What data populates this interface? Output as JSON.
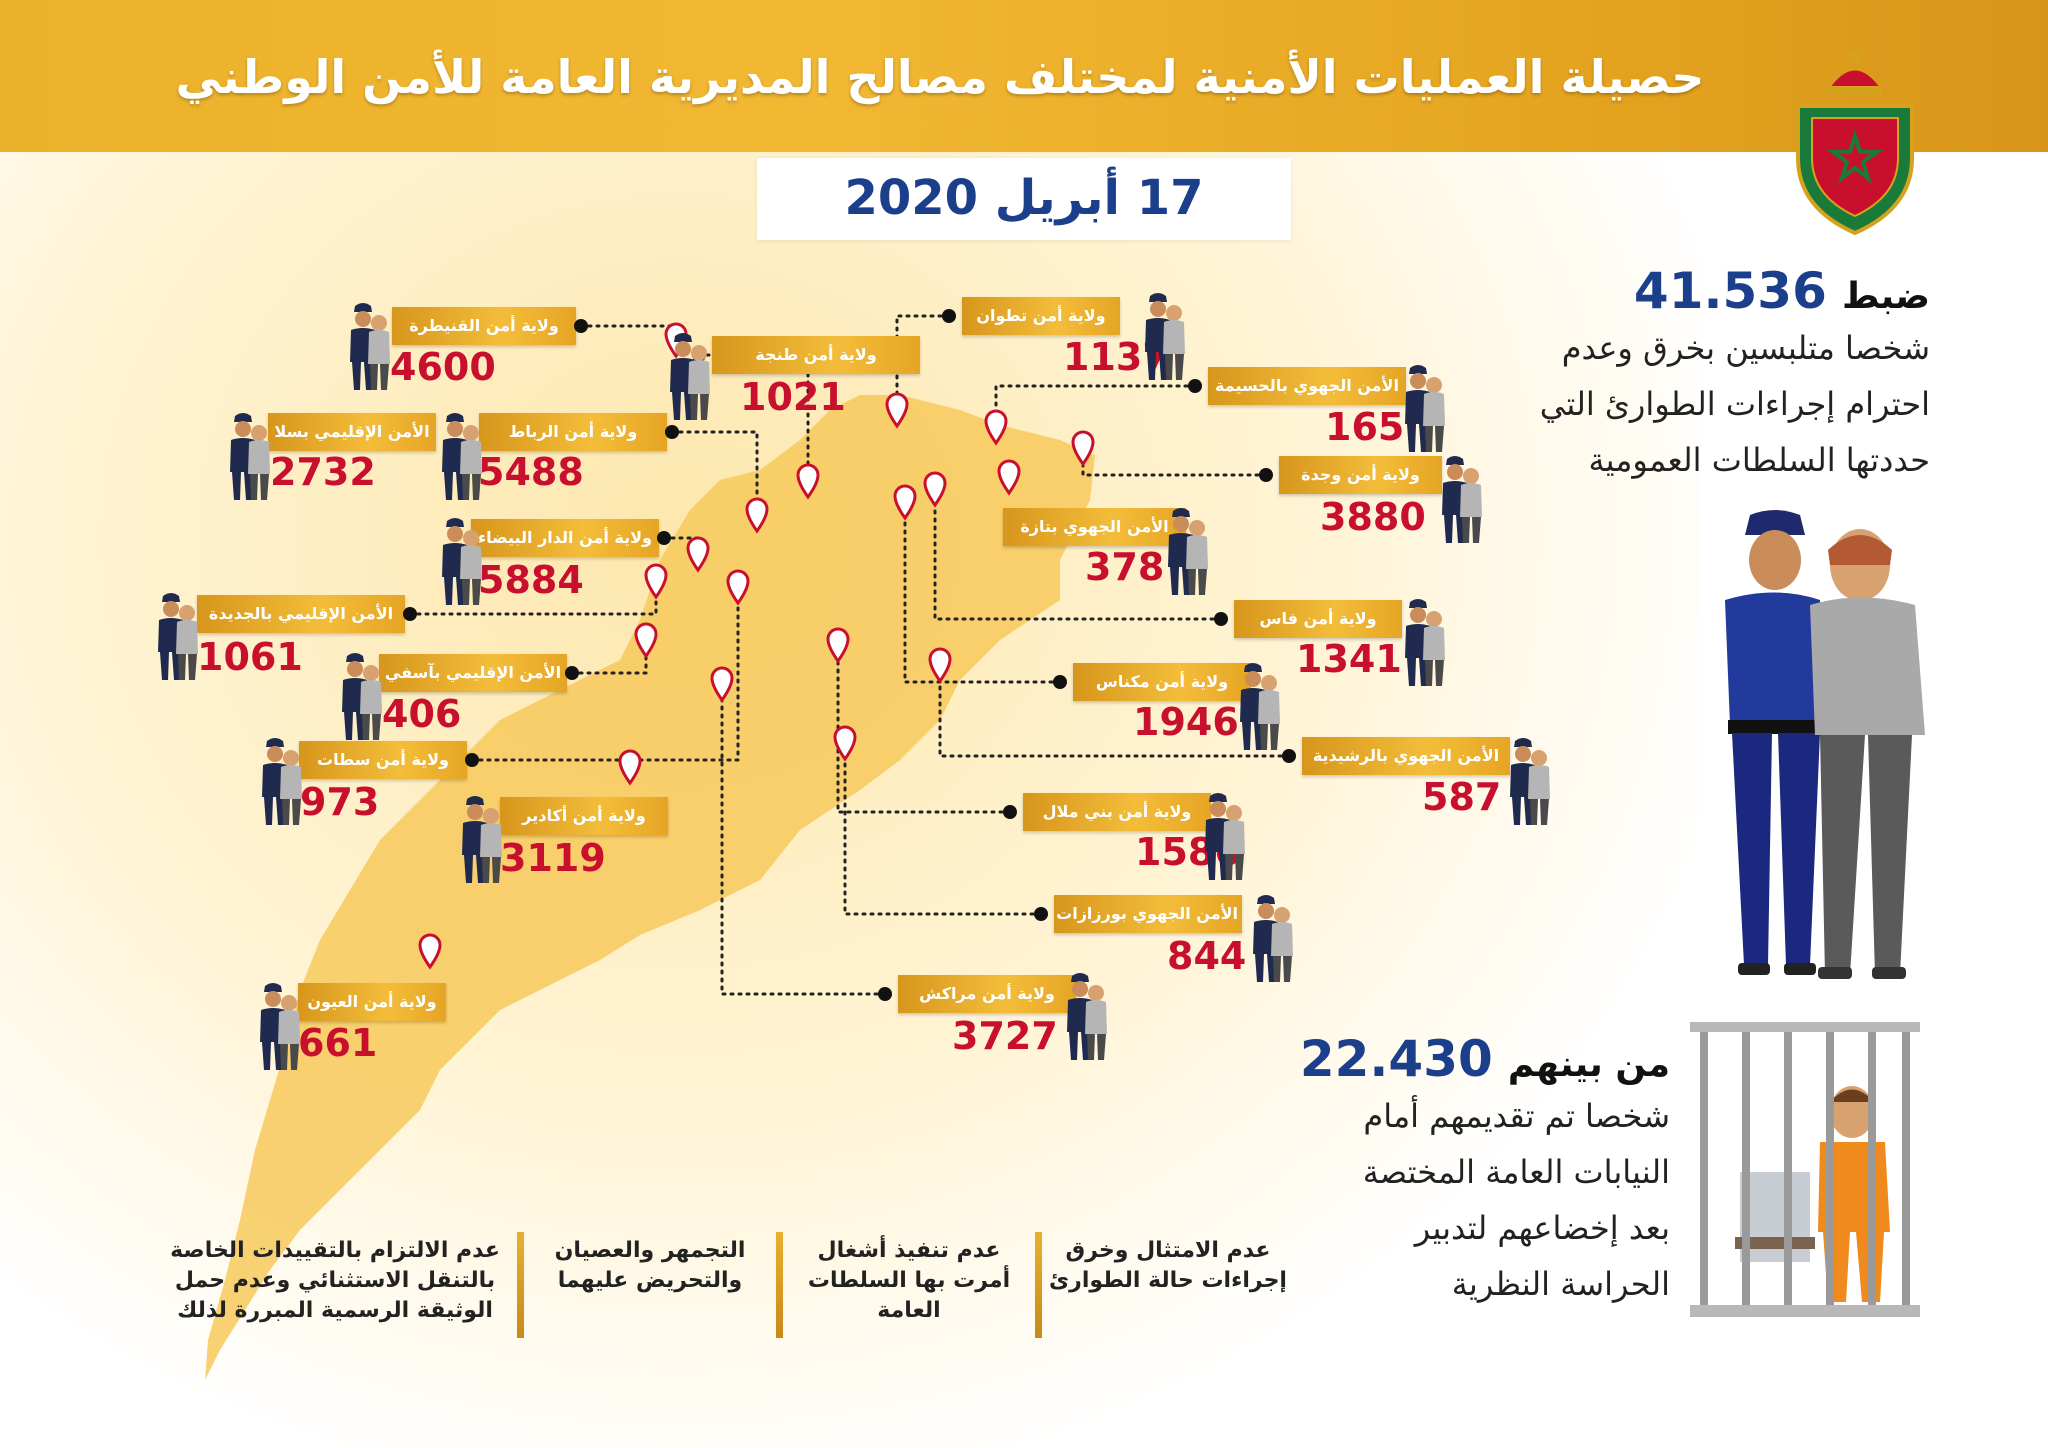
{
  "header": {
    "title": "حصيلة العمليات الأمنية لمختلف مصالح المديرية العامة للأمن الوطني"
  },
  "date": {
    "label": "17 أبريل 2020"
  },
  "colors": {
    "header": "#ecb12a",
    "map": "#f7c95c",
    "value": "#c8102e",
    "highlight": "#1c3f8c",
    "label": "#e6a524"
  },
  "regions": [
    {
      "name": "ولاية أمن القنيطرة",
      "value": "4600"
    },
    {
      "name": "ولاية أمن طنجة",
      "value": "1021"
    },
    {
      "name": "ولاية أمن تطوان",
      "value": "1137"
    },
    {
      "name": "الأمن الجهوي بالحسيمة",
      "value": "165"
    },
    {
      "name": "الأمن الإقليمي بسلا",
      "value": "2732"
    },
    {
      "name": "ولاية أمن الرباط",
      "value": "5488"
    },
    {
      "name": "ولاية أمن وجدة",
      "value": "3880"
    },
    {
      "name": "الأمن الجهوي بتازة",
      "value": "378"
    },
    {
      "name": "ولاية أمن الدار البيضاء",
      "value": "5884"
    },
    {
      "name": "الأمن الإقليمي بالجديدة",
      "value": "1061"
    },
    {
      "name": "ولاية أمن فاس",
      "value": "1341"
    },
    {
      "name": "الأمن الإقليمي بآسفي",
      "value": "406"
    },
    {
      "name": "ولاية أمن مكناس",
      "value": "1946"
    },
    {
      "name": "ولاية أمن سطات",
      "value": "973"
    },
    {
      "name": "الأمن الجهوي بالرشيدية",
      "value": "587"
    },
    {
      "name": "ولاية أمن أكادير",
      "value": "3119"
    },
    {
      "name": "ولاية أمن بني ملال",
      "value": "1586"
    },
    {
      "name": "الأمن الجهوي بورزازات",
      "value": "844"
    },
    {
      "name": "ولاية أمن العيون",
      "value": "661"
    },
    {
      "name": "ولاية أمن مراكش",
      "value": "3727"
    }
  ],
  "stats": {
    "arrested": {
      "prefix": "ضبط",
      "number": "41.536",
      "lines": [
        "شخصا متلبسين بخرق وعدم",
        "احترام إجراءات الطوارئ التي",
        "حددتها السلطات العمومية"
      ]
    },
    "referred": {
      "prefix": "من بينهم",
      "number": "22.430",
      "lines": [
        "شخصا تم تقديمهم أمام",
        "النيابات العامة المختصة",
        "بعد إخضاعهم لتدبير",
        "الحراسة النظرية"
      ]
    }
  },
  "categories": [
    {
      "lines": [
        "عدم الامتثال وخرق",
        "إجراءات حالة الطوارئ"
      ]
    },
    {
      "lines": [
        "عدم تنفيذ أشغال",
        "أمرت بها السلطات",
        "العامة"
      ]
    },
    {
      "lines": [
        "التجمهر والعصيان",
        "والتحريض عليهما"
      ]
    },
    {
      "lines": [
        "عدم الالتزام بالتقييدات الخاصة",
        "بالتنقل الاستثنائي وعدم حمل",
        "الوثيقة الرسمية المبررة لذلك"
      ]
    }
  ]
}
